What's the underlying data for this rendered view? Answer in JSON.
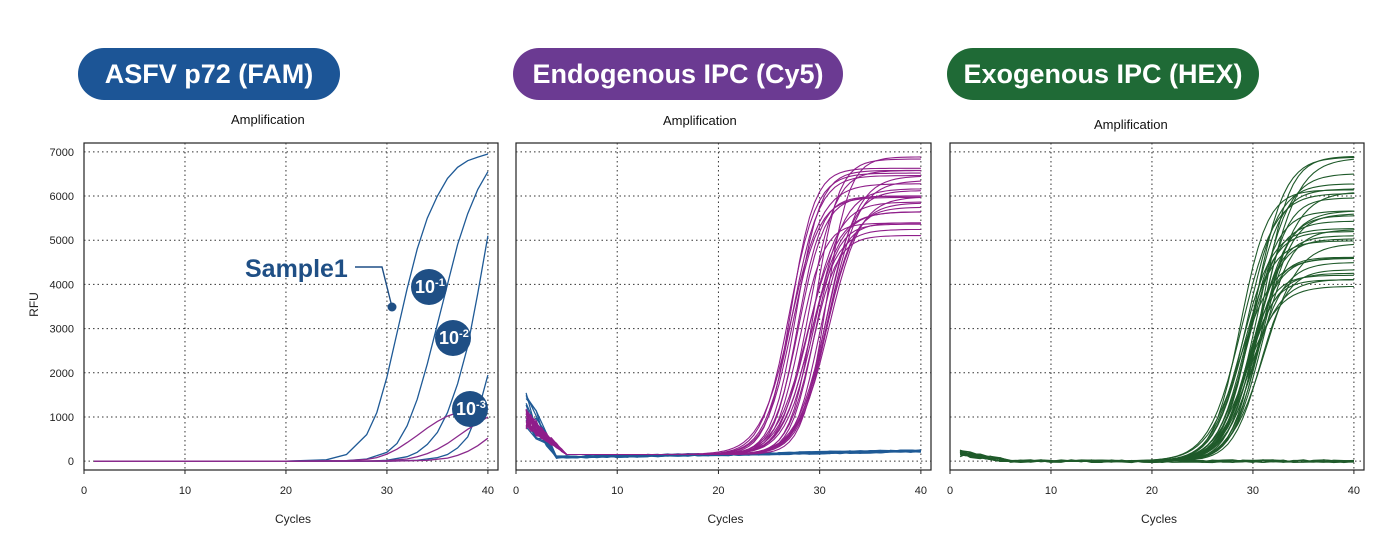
{
  "badges": [
    {
      "label": "ASFV p72 (FAM)",
      "color": "#1c5596"
    },
    {
      "label": "Endogenous IPC (Cy5)",
      "color": "#6b3a92"
    },
    {
      "label": "Exogenous IPC (HEX)",
      "color": "#1f6a36"
    }
  ],
  "annotation": {
    "sample_label": "Sample1",
    "dilutions": [
      {
        "base": "10",
        "exp": "-1"
      },
      {
        "base": "10",
        "exp": "-2"
      },
      {
        "base": "10",
        "exp": "-3"
      }
    ]
  },
  "chart_data": [
    {
      "type": "line",
      "title": "Amplification",
      "xlabel": "Cycles",
      "ylabel": "RFU",
      "xlim": [
        0,
        41
      ],
      "ylim": [
        -200,
        7200
      ],
      "xticks": [
        0,
        10,
        20,
        30,
        40
      ],
      "yticks": [
        0,
        1000,
        2000,
        3000,
        4000,
        5000,
        6000,
        7000
      ],
      "grid": true,
      "series": [
        {
          "color": "#1f5a96",
          "x": [
            1,
            5,
            10,
            15,
            20,
            24,
            26,
            28,
            29,
            30,
            31,
            32,
            33,
            34,
            35,
            36,
            37,
            38,
            39,
            40
          ],
          "y": [
            0,
            0,
            0,
            0,
            0,
            30,
            150,
            600,
            1100,
            1900,
            2900,
            3900,
            4800,
            5500,
            6000,
            6400,
            6650,
            6800,
            6880,
            6950
          ]
        },
        {
          "color": "#1f5a96",
          "x": [
            1,
            10,
            20,
            26,
            28,
            30,
            31,
            32,
            33,
            34,
            35,
            36,
            37,
            38,
            39,
            40
          ],
          "y": [
            0,
            0,
            0,
            10,
            50,
            200,
            400,
            800,
            1400,
            2200,
            3100,
            4000,
            4900,
            5600,
            6150,
            6550
          ]
        },
        {
          "color": "#1f5a96",
          "x": [
            1,
            10,
            20,
            28,
            30,
            32,
            33,
            34,
            35,
            36,
            37,
            38,
            39,
            40
          ],
          "y": [
            0,
            0,
            0,
            0,
            20,
            100,
            200,
            380,
            650,
            1100,
            1750,
            2600,
            3800,
            5100
          ]
        },
        {
          "color": "#1f5a96",
          "x": [
            1,
            10,
            20,
            30,
            33,
            35,
            36,
            37,
            38,
            39,
            40
          ],
          "y": [
            0,
            0,
            0,
            0,
            20,
            80,
            150,
            300,
            550,
            1100,
            1950
          ]
        },
        {
          "color": "#8a2a8c",
          "x": [
            1,
            10,
            20,
            26,
            28,
            29,
            30,
            31,
            32,
            33,
            34,
            35,
            36,
            37,
            38,
            39,
            40
          ],
          "y": [
            0,
            0,
            0,
            10,
            40,
            80,
            160,
            270,
            420,
            580,
            750,
            900,
            1020,
            1100,
            1150,
            1180,
            1200
          ]
        },
        {
          "color": "#8a2a8c",
          "x": [
            1,
            10,
            20,
            30,
            32,
            33,
            34,
            35,
            36,
            37,
            38,
            39,
            40
          ],
          "y": [
            0,
            0,
            0,
            10,
            50,
            100,
            170,
            270,
            400,
            560,
            720,
            860,
            1000
          ]
        },
        {
          "color": "#8a2a8c",
          "x": [
            1,
            10,
            20,
            30,
            34,
            36,
            37,
            38,
            39,
            40
          ],
          "y": [
            0,
            0,
            0,
            0,
            20,
            70,
            130,
            220,
            350,
            520
          ]
        }
      ]
    },
    {
      "type": "line",
      "title": "Amplification",
      "xlabel": "Cycles",
      "ylabel": "",
      "xlim": [
        0,
        41
      ],
      "ylim": [
        -200,
        7200
      ],
      "xticks": [
        0,
        10,
        20,
        30,
        40
      ],
      "yticks": [],
      "grid": true,
      "generator": {
        "kind": "sigmoid_family",
        "count": 26,
        "midpoint_range": [
          26.8,
          31.0
        ],
        "plateau_range": [
          5100,
          6950
        ],
        "slope_range": [
          1.15,
          1.55
        ],
        "baseline": 150,
        "color": "#8f1e8a"
      },
      "flat_series": {
        "count": 12,
        "start": 80,
        "end": 230,
        "color": "#1f5a96"
      }
    },
    {
      "type": "line",
      "title": "Amplification",
      "xlabel": "Cycles",
      "ylabel": "",
      "xlim": [
        0,
        41
      ],
      "ylim": [
        -200,
        7200
      ],
      "xticks": [
        0,
        10,
        20,
        30,
        40
      ],
      "yticks": [],
      "grid": true,
      "generator": {
        "kind": "sigmoid_family",
        "count": 32,
        "midpoint_range": [
          28.6,
          31.2
        ],
        "plateau_range": [
          3900,
          7000
        ],
        "slope_range": [
          1.3,
          1.7
        ],
        "baseline": 0,
        "color": "#1f5a2a"
      },
      "flat_series": {
        "count": 6,
        "start": 0,
        "end": 0,
        "color": "#1f5a2a"
      }
    }
  ]
}
